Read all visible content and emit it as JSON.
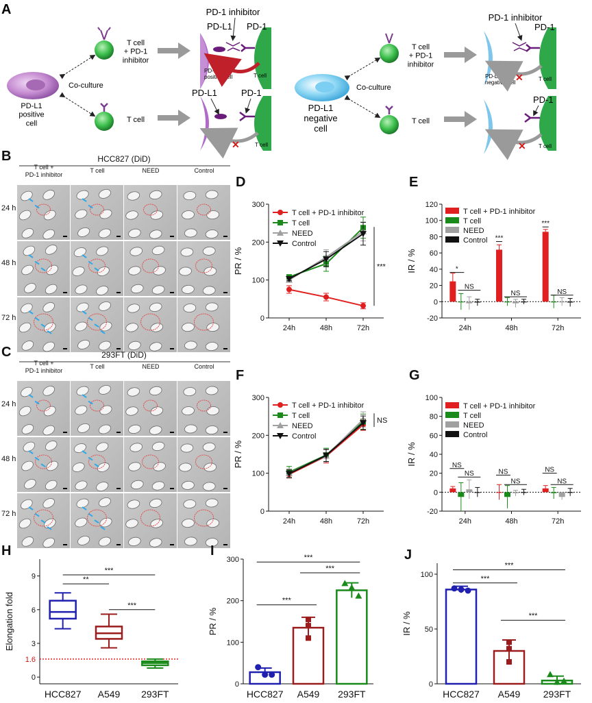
{
  "panel_letters": [
    "A",
    "B",
    "C",
    "D",
    "E",
    "F",
    "G",
    "H",
    "I",
    "J"
  ],
  "schematic": {
    "left_cell": "PD-L1\npositive\ncell",
    "right_cell": "PD-L1\nnegative\ncell",
    "coculture": "Co-culture",
    "condition_inhibitor": "T cell\n+ PD-1\ninhibitor",
    "condition_tcell": "T cell",
    "pd1_inhibitor": "PD-1 inhibitor",
    "pdl1": "PD-L1",
    "pd1": "PD-1",
    "pdl1_pos_cell": "PD-L1\npositive cell",
    "pdl1_neg_cell": "PD-L1\nnegative cell",
    "t_cell": "T cell"
  },
  "micro_B": {
    "title": "HCC827 (DiD)",
    "columns": [
      "T cell +\nPD-1 inhibitor",
      "T cell",
      "NEED",
      "Control"
    ],
    "rows": [
      "24 h",
      "48 h",
      "72 h"
    ]
  },
  "micro_C": {
    "title": "293FT (DiD)",
    "columns": [
      "T cell +\nPD-1 inhibitor",
      "T cell",
      "NEED",
      "Control"
    ],
    "rows": [
      "24 h",
      "48 h",
      "72 h"
    ]
  },
  "colors": {
    "red": "#e02020",
    "green": "#1a8a1a",
    "gray": "#a0a0a0",
    "black": "#111111",
    "blue": "#1f1fb0",
    "darkred": "#9b1c1c",
    "dotted_red": "#e02020"
  },
  "chart_data": [
    {
      "id": "D",
      "type": "line",
      "x": [
        "24h",
        "48h",
        "72h"
      ],
      "ylabel": "PR / %",
      "ylim": [
        0,
        300
      ],
      "yticks": [
        0,
        100,
        200,
        300
      ],
      "series": [
        {
          "name": "T cell + PD-1 inhibitor",
          "values": [
            75,
            55,
            32
          ],
          "err": [
            10,
            10,
            8
          ],
          "color": "#e02020",
          "marker": "circle"
        },
        {
          "name": "T cell",
          "values": [
            108,
            143,
            238
          ],
          "err": [
            6,
            20,
            28
          ],
          "color": "#1a8a1a",
          "marker": "square"
        },
        {
          "name": "NEED",
          "values": [
            100,
            160,
            228
          ],
          "err": [
            6,
            20,
            25
          ],
          "color": "#a0a0a0",
          "marker": "triangle"
        },
        {
          "name": "Control",
          "values": [
            103,
            155,
            222
          ],
          "err": [
            5,
            20,
            30
          ],
          "color": "#111111",
          "marker": "tridown"
        }
      ],
      "legend": "top-left",
      "annotations": [
        {
          "text": "***"
        }
      ]
    },
    {
      "id": "E",
      "type": "bar",
      "categories": [
        "24h",
        "48h",
        "72h"
      ],
      "ylabel": "IR / %",
      "ylim": [
        -20,
        120
      ],
      "yticks": [
        -20,
        0,
        20,
        40,
        60,
        80,
        100,
        120
      ],
      "series": [
        {
          "name": "T cell + PD-1 inhibitor",
          "values": [
            25,
            64,
            86
          ],
          "err": [
            10,
            6,
            3
          ],
          "color": "#e02020"
        },
        {
          "name": "T cell",
          "values": [
            0,
            0,
            0
          ],
          "err": [
            10,
            5,
            8
          ],
          "color": "#1a8a1a"
        },
        {
          "name": "NEED",
          "values": [
            -2,
            -2,
            0
          ],
          "err": [
            8,
            5,
            5
          ],
          "color": "#a0a0a0"
        },
        {
          "name": "Control",
          "values": [
            -1,
            0,
            -1
          ],
          "err": [
            4,
            3,
            5
          ],
          "color": "#111111"
        }
      ],
      "legend": "top-left",
      "annotations": [
        {
          "text": "*"
        },
        {
          "text": "NS"
        },
        {
          "text": "***"
        },
        {
          "text": "NS"
        },
        {
          "text": "***"
        },
        {
          "text": "NS"
        }
      ]
    },
    {
      "id": "F",
      "type": "line",
      "x": [
        "24h",
        "48h",
        "72h"
      ],
      "ylabel": "PR / %",
      "ylim": [
        0,
        300
      ],
      "yticks": [
        0,
        100,
        200,
        300
      ],
      "series": [
        {
          "name": "T cell + PD-1 inhibitor",
          "values": [
            97,
            145,
            228
          ],
          "err": [
            10,
            18,
            15
          ],
          "color": "#e02020",
          "marker": "circle"
        },
        {
          "name": "T cell",
          "values": [
            103,
            148,
            236
          ],
          "err": [
            15,
            18,
            20
          ],
          "color": "#1a8a1a",
          "marker": "square"
        },
        {
          "name": "NEED",
          "values": [
            100,
            146,
            242
          ],
          "err": [
            12,
            16,
            20
          ],
          "color": "#a0a0a0",
          "marker": "triangle"
        },
        {
          "name": "Control",
          "values": [
            99,
            147,
            233
          ],
          "err": [
            10,
            16,
            18
          ],
          "color": "#111111",
          "marker": "tridown"
        }
      ],
      "legend": "top-left",
      "annotations": [
        {
          "text": "NS"
        }
      ]
    },
    {
      "id": "G",
      "type": "bar",
      "categories": [
        "24h",
        "48h",
        "72h"
      ],
      "ylabel": "IR / %",
      "ylim": [
        -20,
        100
      ],
      "yticks": [
        -20,
        0,
        20,
        40,
        60,
        80,
        100
      ],
      "series": [
        {
          "name": "T cell + PD-1 inhibitor",
          "values": [
            4,
            0,
            4
          ],
          "err": [
            2,
            8,
            3
          ],
          "color": "#e02020"
        },
        {
          "name": "T cell",
          "values": [
            -5,
            -5,
            -1
          ],
          "err": [
            15,
            12,
            6
          ],
          "color": "#1a8a1a"
        },
        {
          "name": "NEED",
          "values": [
            3,
            -1,
            -5
          ],
          "err": [
            10,
            3,
            3
          ],
          "color": "#a0a0a0"
        },
        {
          "name": "Control",
          "values": [
            0,
            0,
            0
          ],
          "err": [
            5,
            3,
            4
          ],
          "color": "#111111"
        }
      ],
      "legend": "top-left",
      "annotations": [
        {
          "text": "NS"
        },
        {
          "text": "NS"
        },
        {
          "text": "NS"
        },
        {
          "text": "NS"
        },
        {
          "text": "NS"
        },
        {
          "text": "NS"
        }
      ]
    },
    {
      "id": "H",
      "type": "box",
      "categories": [
        "HCC827",
        "A549",
        "293FT"
      ],
      "ylabel": "Elongation fold",
      "ylim": [
        -0.6,
        10.5
      ],
      "yticks": [
        0,
        3,
        6,
        9
      ],
      "extra_ytick": {
        "value": 1.6,
        "label": "1.6"
      },
      "reference_line": 1.6,
      "boxes": [
        {
          "min": 4.3,
          "q1": 5.2,
          "median": 5.8,
          "q3": 6.8,
          "max": 7.5,
          "color": "#1f1fb0"
        },
        {
          "min": 2.6,
          "q1": 3.4,
          "median": 3.9,
          "q3": 4.5,
          "max": 5.6,
          "color": "#9b1c1c"
        },
        {
          "min": 0.8,
          "q1": 1.05,
          "median": 1.25,
          "q3": 1.4,
          "max": 1.6,
          "color": "#1a8a1a"
        }
      ],
      "annotations": [
        {
          "text": "**"
        },
        {
          "text": "***"
        },
        {
          "text": "***"
        }
      ]
    },
    {
      "id": "I",
      "type": "bar",
      "categories": [
        "HCC827",
        "A549",
        "293FT"
      ],
      "ylabel": "PR / %",
      "ylim": [
        0,
        300
      ],
      "yticks": [
        0,
        100,
        200,
        300
      ],
      "values": [
        28,
        135,
        225
      ],
      "err": [
        10,
        25,
        18
      ],
      "points": [
        [
          40,
          22,
          22
        ],
        [
          155,
          140,
          110
        ],
        [
          240,
          230,
          210
        ]
      ],
      "colors": [
        "#1f1fb0",
        "#9b1c1c",
        "#1a8a1a"
      ],
      "annotations": [
        {
          "text": "***"
        },
        {
          "text": "***"
        },
        {
          "text": "***"
        }
      ]
    },
    {
      "id": "J",
      "type": "bar",
      "categories": [
        "HCC827",
        "A549",
        "293FT"
      ],
      "ylabel": "IR / %",
      "ylim": [
        0,
        110
      ],
      "yticks": [
        0,
        50,
        100
      ],
      "values": [
        86,
        30,
        3
      ],
      "err": [
        3,
        10,
        4
      ],
      "points": [
        [
          87,
          86,
          85
        ],
        [
          38,
          32,
          20
        ],
        [
          8,
          1,
          2
        ]
      ],
      "colors": [
        "#1f1fb0",
        "#9b1c1c",
        "#1a8a1a"
      ],
      "annotations": [
        {
          "text": "***"
        },
        {
          "text": "***"
        },
        {
          "text": "***"
        }
      ]
    }
  ]
}
